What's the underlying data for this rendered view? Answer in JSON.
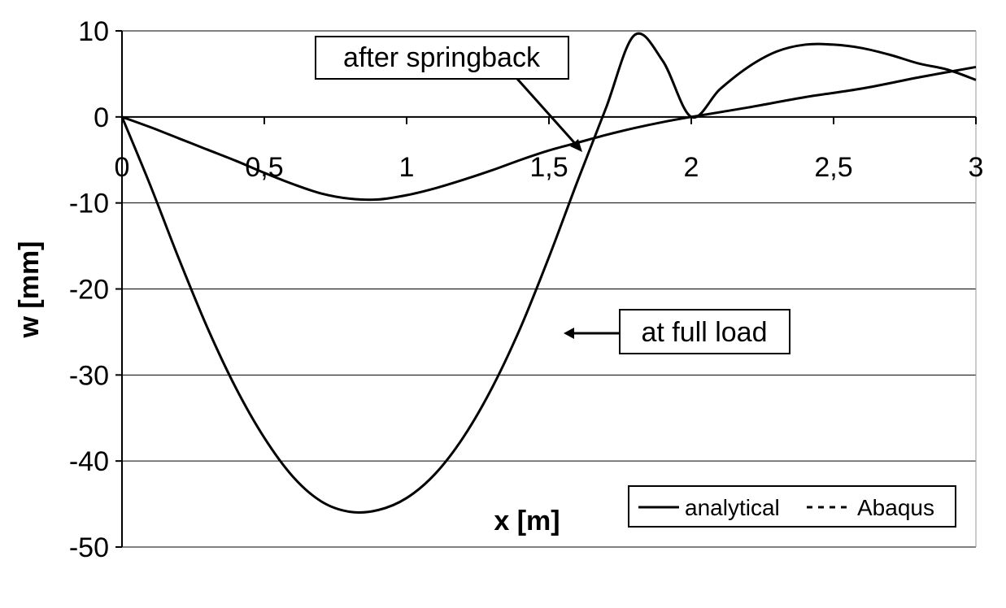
{
  "chart_data": {
    "type": "line",
    "xlabel": "x [m]",
    "ylabel": "w [mm]",
    "xlim": [
      0,
      3
    ],
    "ylim": [
      -50,
      10
    ],
    "x_ticks": [
      "0",
      "0,5",
      "1",
      "1,5",
      "2",
      "2,5",
      "3"
    ],
    "x_tick_values": [
      0,
      0.5,
      1,
      1.5,
      2,
      2.5,
      3
    ],
    "y_ticks": [
      "10",
      "0",
      "-10",
      "-20",
      "-30",
      "-40",
      "-50"
    ],
    "y_tick_values": [
      10,
      0,
      -10,
      -20,
      -30,
      -40,
      -50
    ],
    "grid": "horizontal",
    "legend_position": "bottom-right",
    "legend": [
      {
        "label": "analytical",
        "style": "solid"
      },
      {
        "label": "Abaqus",
        "style": "dashed"
      }
    ],
    "series": [
      {
        "name": "at full load",
        "x": [
          0,
          0.1,
          0.2,
          0.3,
          0.4,
          0.5,
          0.6,
          0.7,
          0.8,
          0.9,
          1.0,
          1.1,
          1.2,
          1.3,
          1.4,
          1.5,
          1.6,
          1.7,
          1.8,
          1.9,
          2.0,
          2.1,
          2.2,
          2.3,
          2.4,
          2.5,
          2.6,
          2.7,
          2.8,
          2.9,
          3.0
        ],
        "values": [
          0,
          -8,
          -16.5,
          -24.5,
          -31.5,
          -37.3,
          -41.8,
          -44.7,
          -45.9,
          -45.7,
          -44.3,
          -41.5,
          -37.2,
          -31.5,
          -24.5,
          -16.3,
          -7.5,
          1.0,
          9.5,
          6.5,
          0,
          3.2,
          5.8,
          7.6,
          8.4,
          8.4,
          8.0,
          7.2,
          6.2,
          5.5,
          4.3
        ]
      },
      {
        "name": "after springback",
        "x": [
          0,
          0.1,
          0.2,
          0.3,
          0.4,
          0.5,
          0.6,
          0.7,
          0.8,
          0.9,
          1.0,
          1.1,
          1.2,
          1.3,
          1.4,
          1.5,
          1.6,
          1.7,
          1.8,
          1.9,
          2.0,
          2.2,
          2.4,
          2.6,
          2.8,
          3.0
        ],
        "values": [
          0,
          -1.2,
          -2.5,
          -3.8,
          -5.1,
          -6.5,
          -7.8,
          -8.9,
          -9.5,
          -9.6,
          -9.1,
          -8.3,
          -7.3,
          -6.2,
          -5.0,
          -3.9,
          -3.0,
          -2.1,
          -1.3,
          -0.6,
          0,
          1.1,
          2.3,
          3.3,
          4.6,
          5.8
        ]
      }
    ],
    "annotations": [
      {
        "text": "after springback",
        "target_x": 1.6,
        "target_y": -3.4
      },
      {
        "text": "at full load",
        "target_x": 1.56,
        "target_y": -25.5
      }
    ]
  }
}
